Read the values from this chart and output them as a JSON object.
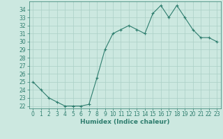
{
  "x": [
    0,
    1,
    2,
    3,
    4,
    5,
    6,
    7,
    8,
    9,
    10,
    11,
    12,
    13,
    14,
    15,
    16,
    17,
    18,
    19,
    20,
    21,
    22,
    23
  ],
  "y": [
    25,
    24,
    23,
    22.5,
    22,
    22,
    22,
    22.2,
    25.5,
    29,
    31,
    31.5,
    32,
    31.5,
    31,
    33.5,
    34.5,
    33,
    34.5,
    33,
    31.5,
    30.5,
    30.5,
    30
  ],
  "xlabel": "Humidex (Indice chaleur)",
  "ylim_min": 22,
  "ylim_max": 35,
  "xlim_min": -0.5,
  "xlim_max": 23.5,
  "yticks": [
    22,
    23,
    24,
    25,
    26,
    27,
    28,
    29,
    30,
    31,
    32,
    33,
    34
  ],
  "xticks": [
    0,
    1,
    2,
    3,
    4,
    5,
    6,
    7,
    8,
    9,
    10,
    11,
    12,
    13,
    14,
    15,
    16,
    17,
    18,
    19,
    20,
    21,
    22,
    23
  ],
  "line_color": "#2e7d6e",
  "marker": "+",
  "bg_color": "#cce8e0",
  "grid_color": "#aacfc6",
  "tick_fontsize": 5.5,
  "label_fontsize": 6.5
}
